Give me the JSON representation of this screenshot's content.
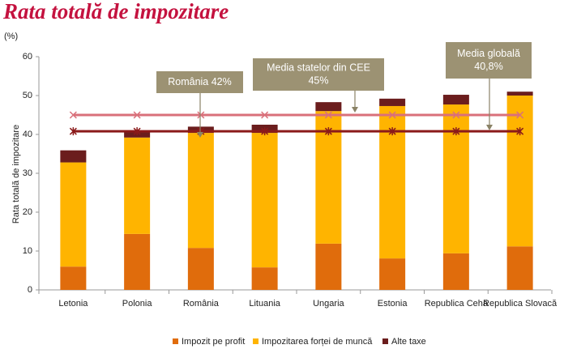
{
  "chart_data": {
    "type": "bar",
    "stacked": true,
    "title": "Rata totală de impozitare",
    "unit_label": "(%)",
    "y_label": "Rata totală de impozitare",
    "categories": [
      "Letonia",
      "Polonia",
      "România",
      "Lituania",
      "Ungaria",
      "Estonia",
      "Republica Cehă",
      "Republica Slovacă"
    ],
    "series": [
      {
        "name": "Impozit pe profit",
        "color": "#e06c0c",
        "values": [
          6.0,
          14.4,
          10.8,
          5.8,
          11.9,
          8.1,
          9.4,
          11.2
        ]
      },
      {
        "name": "Impozitarea forței de muncă",
        "color": "#ffb400",
        "values": [
          26.8,
          24.8,
          29.6,
          34.6,
          34.1,
          39.2,
          38.3,
          38.8
        ]
      },
      {
        "name": "Alte taxe",
        "color": "#6b1d1d",
        "values": [
          3.1,
          1.4,
          1.6,
          2.1,
          2.3,
          1.9,
          2.5,
          1.0
        ]
      }
    ],
    "reference_lines": [
      {
        "value": 45,
        "color": "#d9707a",
        "marker": "x"
      },
      {
        "value": 40.8,
        "color": "#8b1a1a",
        "marker": "star"
      }
    ],
    "annotations": [
      {
        "lines": [
          "România 42%"
        ]
      },
      {
        "lines": [
          "Media statelor din CEE",
          "45%"
        ]
      },
      {
        "lines": [
          "Media globală",
          "40,8%"
        ]
      }
    ],
    "ylim": [
      0,
      60
    ],
    "yticks": [
      0,
      10,
      20,
      30,
      40,
      50,
      60
    ],
    "grid": false
  }
}
